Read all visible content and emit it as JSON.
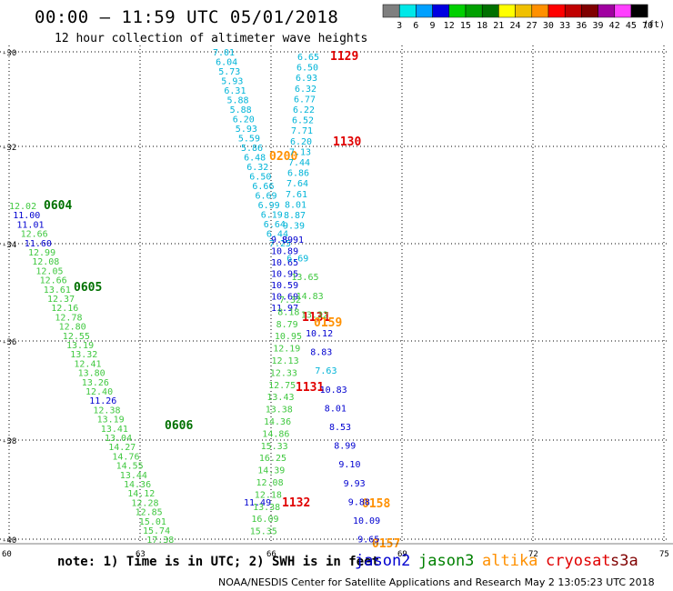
{
  "title": "00:00 – 11:59 UTC 05/01/2018",
  "subtitle": "12 hour collection of altimeter wave heights",
  "colorbar": {
    "labels": [
      "3",
      "6",
      "9",
      "12",
      "15",
      "18",
      "21",
      "24",
      "27",
      "30",
      "33",
      "36",
      "39",
      "42",
      "45",
      "70"
    ],
    "colors": [
      "#7f7f7f",
      "#00e8e8",
      "#00a0ff",
      "#0000e0",
      "#00d000",
      "#00a000",
      "#007000",
      "#ffff00",
      "#f0c000",
      "#ff9000",
      "#ff0000",
      "#c00000",
      "#800000",
      "#a000a0",
      "#ff40ff",
      "#000000"
    ],
    "unit": "(ft)"
  },
  "axes": {
    "lat_labels": [
      "-30",
      "-32",
      "-34",
      "-36",
      "-38",
      "-40"
    ],
    "lon_labels": [
      "60",
      "63",
      "66",
      "69",
      "72",
      "75"
    ]
  },
  "times": [
    {
      "text": "1129",
      "color": "#e00000"
    },
    {
      "text": "1130",
      "color": "#e00000"
    },
    {
      "text": "0200",
      "color": "#ff9000"
    },
    {
      "text": "0604",
      "color": "#007000"
    },
    {
      "text": "0605",
      "color": "#007000"
    },
    {
      "text": "1131",
      "color": "#e00000"
    },
    {
      "text": "0159",
      "color": "#ff9000"
    },
    {
      "text": "1131",
      "color": "#e00000"
    },
    {
      "text": "0606",
      "color": "#007000"
    },
    {
      "text": "1132",
      "color": "#e00000"
    },
    {
      "text": "0158",
      "color": "#ff9000"
    },
    {
      "text": "0157",
      "color": "#ff9000"
    }
  ],
  "tracks": [
    {
      "name": "track-cyan-left",
      "color": "#00b4d8",
      "values": [
        "7.01",
        "6.04",
        "5.73",
        "5.93",
        "6.31",
        "5.88",
        "5.88",
        "6.20",
        "5.93",
        "5.59",
        "5.86",
        "6.48",
        "6.32",
        "6.50",
        "6.66",
        "6.69",
        "6.99",
        "6.19",
        "6.64",
        "6.44",
        "7.25"
      ]
    },
    {
      "name": "track-cyan-right",
      "color": "#00b4d8",
      "values": [
        "6.65",
        "6.50",
        "6.93",
        "6.32",
        "6.77",
        "6.22",
        "6.52",
        "7.71",
        "6.20",
        "7.13",
        "7.44",
        "6.86",
        "7.64",
        "7.61",
        "8.01",
        "8.87",
        "9.39"
      ]
    },
    {
      "name": "track-blue-mid",
      "color": "#0000d0",
      "values": [
        "9.89",
        "10.89",
        "10.65",
        "10.95",
        "10.59",
        "10.69",
        "11.97"
      ]
    },
    {
      "name": "track-green-mid",
      "color": "#40c840",
      "values": [
        "7.32",
        "8.18",
        "8.79",
        "10.95",
        "12.19",
        "12.13",
        "12.33",
        "12.75",
        "13.43",
        "13.38",
        "14.36",
        "14.86",
        "15.33",
        "16.25",
        "14.39",
        "12.08",
        "12.18",
        "13.38",
        "16.09",
        "15.35"
      ]
    },
    {
      "name": "track-blue-right",
      "color": "#0000d0",
      "values": [
        "8.91",
        "6.69",
        "13.65",
        "14.83",
        "13.32",
        "10.12",
        "8.83",
        "7.63",
        "10.83",
        "8.01",
        "8.53",
        "8.99",
        "9.10",
        "9.93",
        "9.88",
        "10.09",
        "9.65"
      ]
    },
    {
      "name": "track-green-left",
      "color": "#40c840",
      "values": [
        "12.02",
        "11.00",
        "11.01",
        "12.66",
        "11.60",
        "12.99",
        "12.08",
        "12.05",
        "12.66",
        "13.61",
        "12.37",
        "12.16",
        "12.78",
        "12.80",
        "12.55",
        "13.19",
        "13.32",
        "12.41",
        "13.80",
        "13.26",
        "12.40",
        "11.26",
        "12.38",
        "13.19",
        "13.41",
        "13.04",
        "14.27",
        "14.76",
        "14.55",
        "13.44",
        "14.36",
        "14.12",
        "12.28",
        "12.85",
        "15.01",
        "15.74",
        "17.38",
        "11.49"
      ]
    }
  ],
  "note": "note: 1) Time is in UTC; 2) SWH is in feet",
  "legend": [
    {
      "name": "jason2",
      "color": "#0000d0"
    },
    {
      "name": "jason3",
      "color": "#008000"
    },
    {
      "name": "altika",
      "color": "#ff9000"
    },
    {
      "name": "cryosat",
      "color": "#e00000"
    },
    {
      "name": "s3a",
      "color": "#800000"
    }
  ],
  "footer": "NOAA/NESDIS Center for Satellite Applications and Research    May  2 13:05:23 UTC 2018"
}
